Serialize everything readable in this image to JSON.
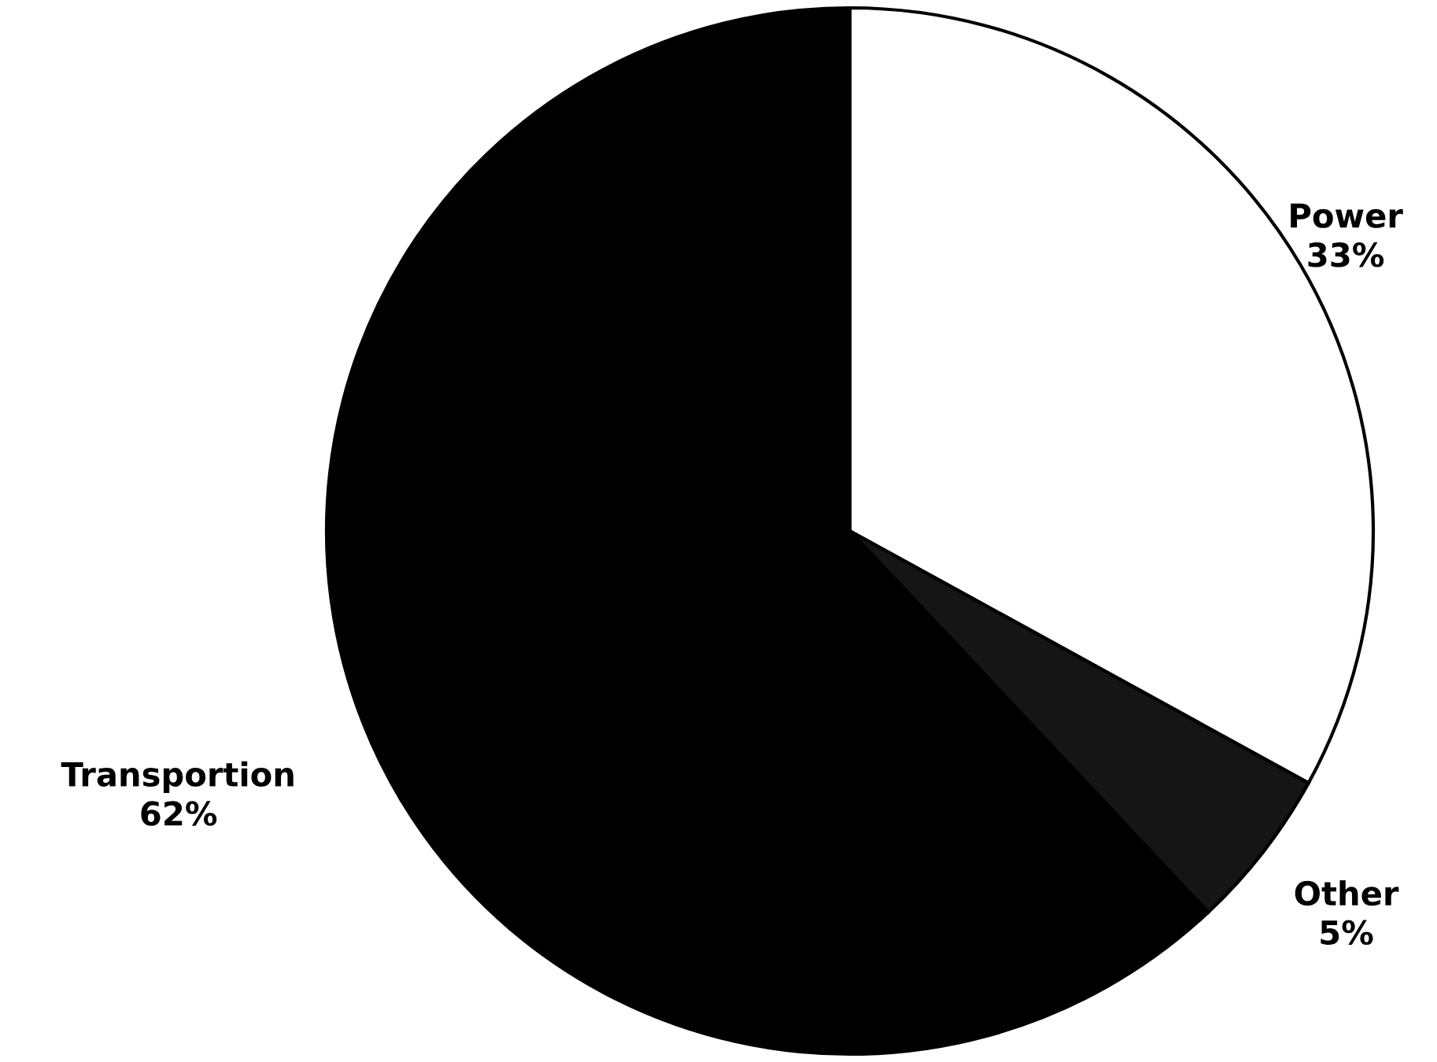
{
  "chart_data": {
    "type": "pie",
    "categories": [
      "Power",
      "Other",
      "Transportion"
    ],
    "values": [
      33,
      5,
      62
    ],
    "colors": [
      "#ffffff",
      "#151515",
      "#000000"
    ],
    "value_labels": [
      "33%",
      "5%",
      "62%"
    ]
  }
}
